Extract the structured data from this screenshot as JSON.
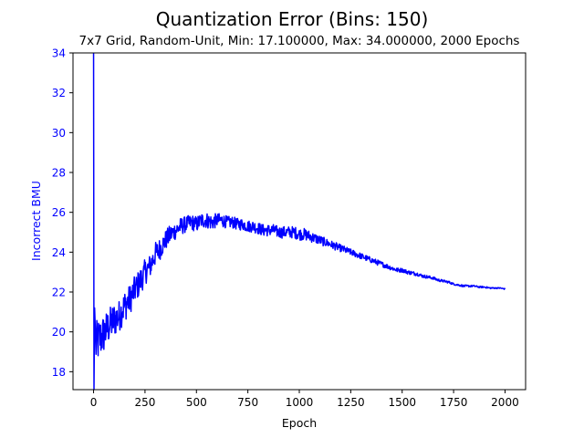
{
  "chart_data": {
    "type": "line",
    "title": "Quantization Error (Bins: 150)",
    "subtitle": "7x7 Grid, Random-Unit, Min: 17.100000, Max: 34.000000, 2000 Epochs",
    "xlabel": "Epoch",
    "ylabel": "Incorrect BMU",
    "xlim": [
      -100,
      2100
    ],
    "ylim": [
      17.1,
      34.0
    ],
    "xticks": [
      0,
      250,
      500,
      750,
      1000,
      1250,
      1500,
      1750,
      2000
    ],
    "yticks": [
      18,
      20,
      22,
      24,
      26,
      28,
      30,
      32,
      34
    ],
    "grid": false,
    "series": [
      {
        "color": "#0000ff",
        "x": [
          0,
          2,
          5,
          10,
          25,
          50,
          75,
          100,
          125,
          150,
          175,
          200,
          225,
          250,
          275,
          300,
          325,
          350,
          375,
          400,
          425,
          450,
          475,
          500,
          525,
          550,
          575,
          600,
          625,
          650,
          675,
          700,
          725,
          750,
          775,
          800,
          825,
          850,
          875,
          900,
          925,
          950,
          975,
          1000,
          1025,
          1050,
          1075,
          1100,
          1125,
          1150,
          1175,
          1200,
          1225,
          1250,
          1275,
          1300,
          1325,
          1350,
          1375,
          1400,
          1425,
          1450,
          1475,
          1500,
          1525,
          1550,
          1575,
          1600,
          1625,
          1650,
          1675,
          1700,
          1725,
          1750,
          1775,
          1800,
          1825,
          1850,
          1875,
          1900,
          1925,
          1950,
          1975,
          2000
        ],
        "y": [
          34.0,
          17.1,
          21.2,
          19.3,
          19.6,
          19.9,
          20.3,
          20.6,
          20.8,
          21.3,
          21.6,
          22.1,
          22.5,
          23.0,
          23.3,
          23.9,
          24.2,
          24.6,
          24.9,
          25.1,
          25.3,
          25.4,
          25.5,
          25.4,
          25.6,
          25.6,
          25.5,
          25.6,
          25.6,
          25.5,
          25.5,
          25.4,
          25.4,
          25.3,
          25.3,
          25.2,
          25.1,
          25.1,
          25.1,
          25.0,
          25.0,
          25.0,
          25.0,
          24.9,
          24.9,
          24.8,
          24.7,
          24.6,
          24.5,
          24.4,
          24.3,
          24.2,
          24.1,
          24.0,
          23.9,
          23.8,
          23.7,
          23.6,
          23.5,
          23.4,
          23.3,
          23.2,
          23.1,
          23.1,
          23.0,
          22.95,
          22.9,
          22.8,
          22.75,
          22.7,
          22.6,
          22.55,
          22.5,
          22.4,
          22.35,
          22.3,
          22.3,
          22.3,
          22.25,
          22.25,
          22.2,
          22.2,
          22.2,
          22.15
        ],
        "noise": [
          0,
          0,
          0,
          1.2,
          1.1,
          1.0,
          0.9,
          0.9,
          0.8,
          0.8,
          0.75,
          0.7,
          0.7,
          0.65,
          0.6,
          0.6,
          0.55,
          0.5,
          0.5,
          0.45,
          0.45,
          0.4,
          0.4,
          0.4,
          0.4,
          0.4,
          0.4,
          0.35,
          0.35,
          0.3,
          0.3,
          0.3,
          0.3,
          0.3,
          0.3,
          0.3,
          0.3,
          0.3,
          0.3,
          0.3,
          0.3,
          0.3,
          0.3,
          0.3,
          0.3,
          0.28,
          0.26,
          0.24,
          0.22,
          0.2,
          0.2,
          0.18,
          0.18,
          0.16,
          0.16,
          0.15,
          0.15,
          0.14,
          0.14,
          0.13,
          0.12,
          0.12,
          0.11,
          0.1,
          0.1,
          0.1,
          0.09,
          0.08,
          0.08,
          0.07,
          0.07,
          0.06,
          0.06,
          0.05,
          0.05,
          0.05,
          0.05,
          0.04,
          0.04,
          0.04,
          0.04,
          0.03,
          0.03,
          0.03
        ]
      }
    ]
  }
}
